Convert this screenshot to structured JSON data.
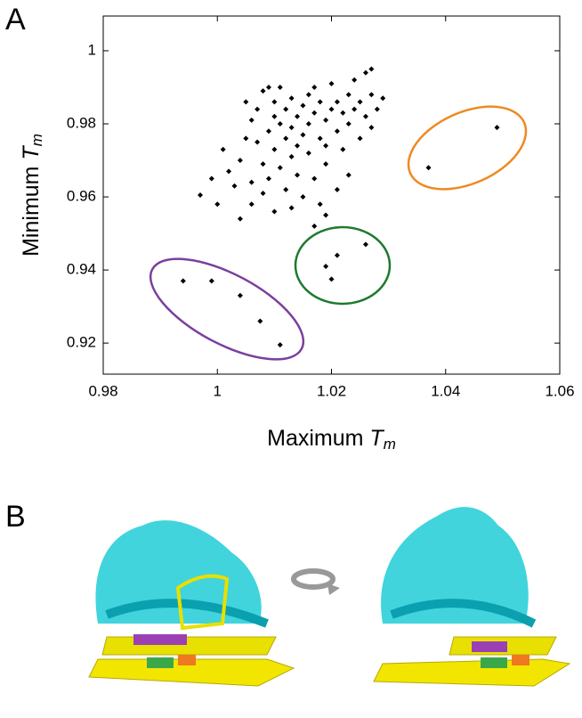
{
  "panels": [
    "A",
    "B"
  ],
  "chart_data": {
    "type": "scatter",
    "x_label": {
      "text": "Maximum ",
      "var": "T",
      "sub": "m"
    },
    "y_label": {
      "text": "Minimum ",
      "var": "T",
      "sub": "m"
    },
    "color": "#000000",
    "xlim": [
      0.98,
      1.06
    ],
    "xticks": [
      0.98,
      1,
      1.02,
      1.04,
      1.06
    ],
    "ylim": [
      0.9115,
      1.0095
    ],
    "yticks": [
      0.92,
      0.94,
      0.96,
      0.98,
      1
    ],
    "x": [
      0.994,
      0.999,
      1.004,
      1.0075,
      1.011,
      1.019,
      1.02,
      1.021,
      1.026,
      1.037,
      1.049,
      0.997,
      0.999,
      1.0,
      1.001,
      1.002,
      1.003,
      1.004,
      1.004,
      1.005,
      1.005,
      1.006,
      1.006,
      1.007,
      1.007,
      1.008,
      1.008,
      1.008,
      1.009,
      1.009,
      1.009,
      1.01,
      1.01,
      1.01,
      1.01,
      1.011,
      1.011,
      1.011,
      1.012,
      1.012,
      1.012,
      1.013,
      1.013,
      1.013,
      1.014,
      1.014,
      1.014,
      1.015,
      1.015,
      1.015,
      1.016,
      1.016,
      1.016,
      1.017,
      1.017,
      1.017,
      1.018,
      1.018,
      1.018,
      1.019,
      1.019,
      1.019,
      1.02,
      1.02,
      1.021,
      1.021,
      1.021,
      1.022,
      1.022,
      1.023,
      1.023,
      1.024,
      1.024,
      1.025,
      1.025,
      1.026,
      1.026,
      1.027,
      1.027,
      1.027,
      1.028,
      1.029,
      1.023,
      1.017,
      1.013,
      1.006,
      1.019
    ],
    "y": [
      0.937,
      0.937,
      0.933,
      0.926,
      0.9195,
      0.941,
      0.9375,
      0.944,
      0.947,
      0.968,
      0.979,
      0.9605,
      0.965,
      0.958,
      0.973,
      0.967,
      0.963,
      0.954,
      0.97,
      0.976,
      0.986,
      0.981,
      0.958,
      0.984,
      0.975,
      0.969,
      0.989,
      0.961,
      0.978,
      0.99,
      0.965,
      0.982,
      0.973,
      0.956,
      0.986,
      0.98,
      0.968,
      0.99,
      0.976,
      0.984,
      0.962,
      0.979,
      0.971,
      0.987,
      0.974,
      0.982,
      0.966,
      0.985,
      0.977,
      0.96,
      0.988,
      0.972,
      0.98,
      0.983,
      0.965,
      0.99,
      0.976,
      0.986,
      0.958,
      0.981,
      0.969,
      0.955,
      0.984,
      0.991,
      0.978,
      0.986,
      0.962,
      0.983,
      0.973,
      0.988,
      0.98,
      0.984,
      0.992,
      0.976,
      0.986,
      0.994,
      0.982,
      0.988,
      0.995,
      0.979,
      0.984,
      0.987,
      0.966,
      0.952,
      0.957,
      0.964,
      0.974
    ]
  }
}
